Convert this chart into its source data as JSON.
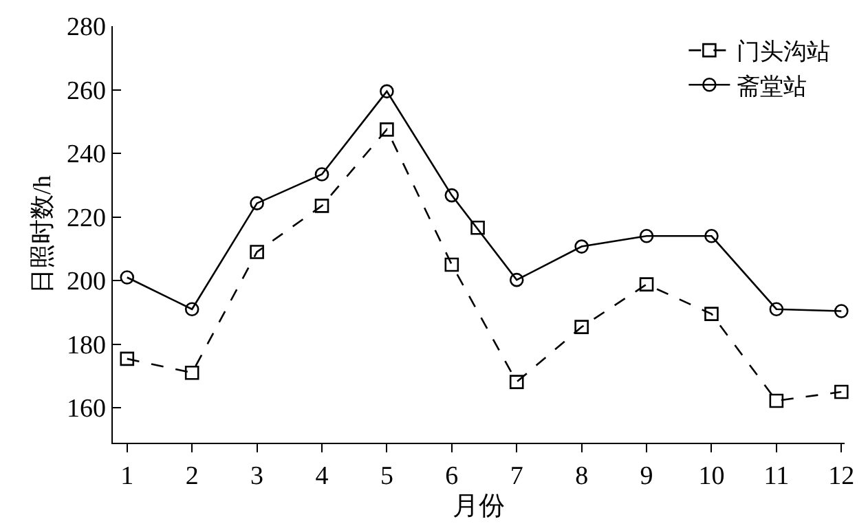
{
  "chart_data": {
    "type": "line",
    "xlabel": "月份",
    "ylabel": "日照时数/h",
    "x": [
      1,
      2,
      3,
      4,
      5,
      6,
      7,
      8,
      9,
      10,
      11,
      12
    ],
    "xlim": [
      0.78,
      12.05
    ],
    "xticks": [
      1,
      2,
      3,
      4,
      5,
      6,
      7,
      8,
      9,
      10,
      11,
      12
    ],
    "ylim": [
      149,
      280
    ],
    "yticks": [
      160,
      180,
      200,
      220,
      240,
      260,
      280
    ],
    "legend": "top right",
    "series": [
      {
        "name": "门头沟站",
        "color": "#000000",
        "line_style": "dashed",
        "marker": "square",
        "values": [
          175.4,
          171,
          209,
          223.5,
          247.5,
          205,
          168.1,
          185.4,
          198.8,
          189.5,
          162.2,
          165
        ]
      },
      {
        "name": "斋堂站",
        "color": "#000000",
        "line_style": "solid",
        "marker": "circle",
        "values": [
          201,
          191,
          224.3,
          233.4,
          259.5,
          226.8,
          200.2,
          210.7,
          214,
          214,
          191,
          190.4
        ]
      },
      {
        "type": "scatter",
        "color": "#000000",
        "marker": "square",
        "x": [
          6.4
        ],
        "values": [
          216.6
        ]
      }
    ]
  }
}
